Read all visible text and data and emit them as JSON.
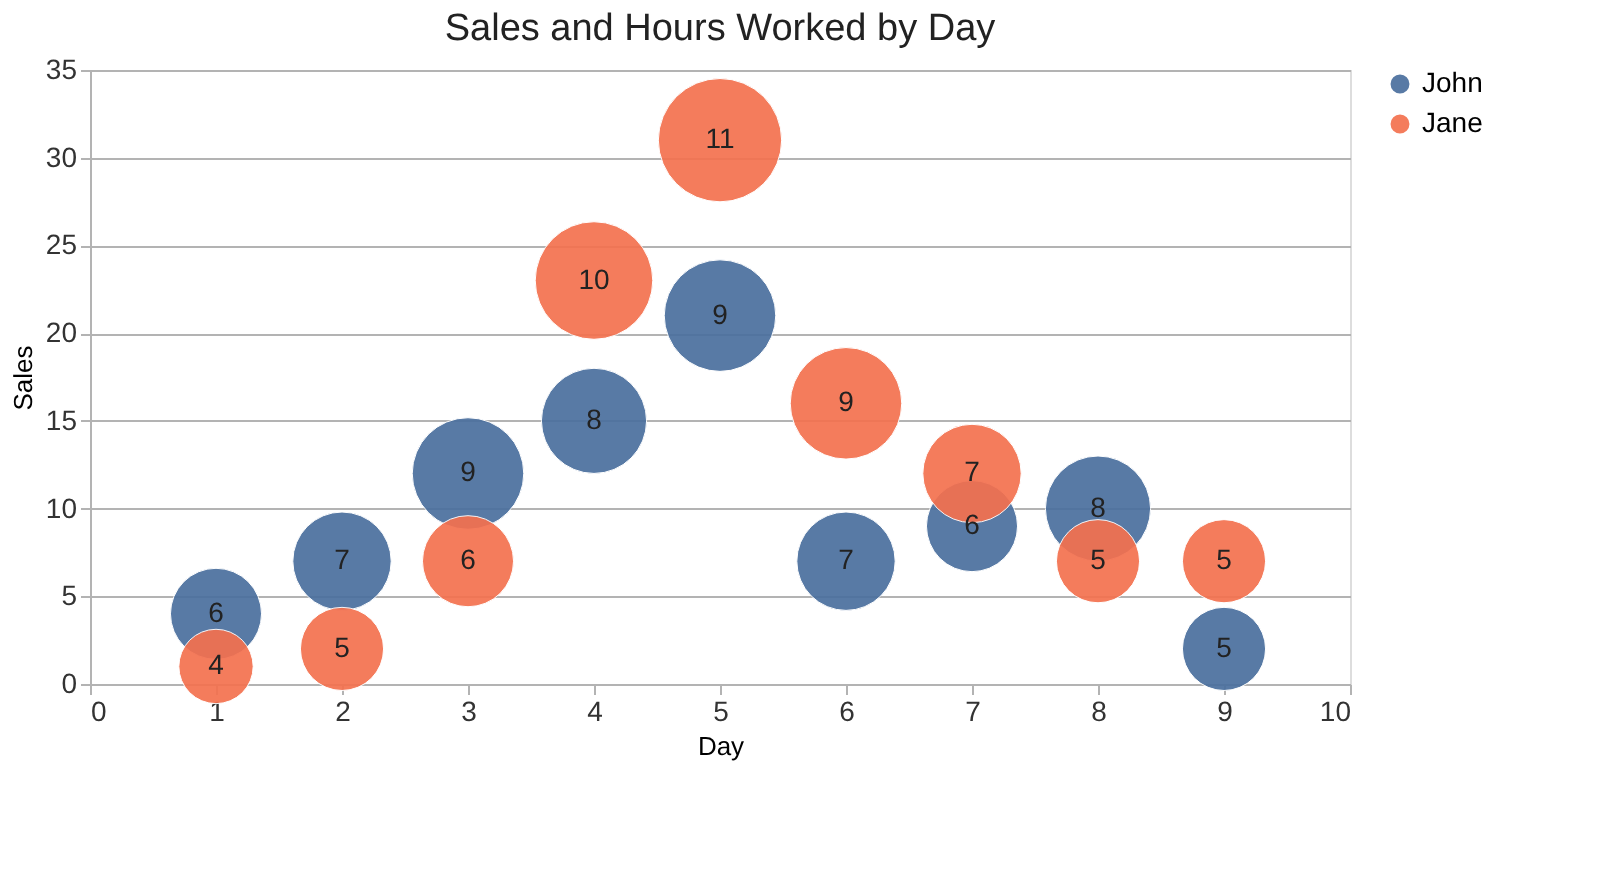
{
  "chart_data": {
    "type": "bubble",
    "title": "Sales and Hours Worked by Day",
    "xlabel": "Day",
    "ylabel": "Sales",
    "x": [
      1,
      2,
      3,
      4,
      5,
      6,
      7,
      8,
      9
    ],
    "series": [
      {
        "name": "John",
        "color": "#4a6f9e",
        "values": [
          4,
          7,
          12,
          15,
          21,
          7,
          9,
          10,
          2
        ],
        "sizes": [
          6,
          7,
          9,
          8,
          9,
          7,
          6,
          8,
          5
        ],
        "value_labels": [
          "6",
          "7",
          "9",
          "8",
          "9",
          "7",
          "6",
          "8",
          "5"
        ]
      },
      {
        "name": "Jane",
        "color": "#f4714f",
        "values": [
          1,
          2,
          7,
          23,
          31,
          16,
          12,
          7,
          7
        ],
        "sizes": [
          4,
          5,
          6,
          10,
          11,
          9,
          7,
          5,
          5
        ],
        "value_labels": [
          "4",
          "5",
          "6",
          "10",
          "11",
          "9",
          "7",
          "5",
          "5"
        ]
      }
    ],
    "xlim": [
      0,
      10
    ],
    "xticks": [
      0,
      1,
      2,
      3,
      4,
      5,
      6,
      7,
      8,
      9,
      10
    ],
    "ylim": [
      0,
      35
    ],
    "yticks": [
      0,
      5,
      10,
      15,
      20,
      25,
      30,
      35
    ],
    "grid": "y",
    "legend": "right"
  }
}
